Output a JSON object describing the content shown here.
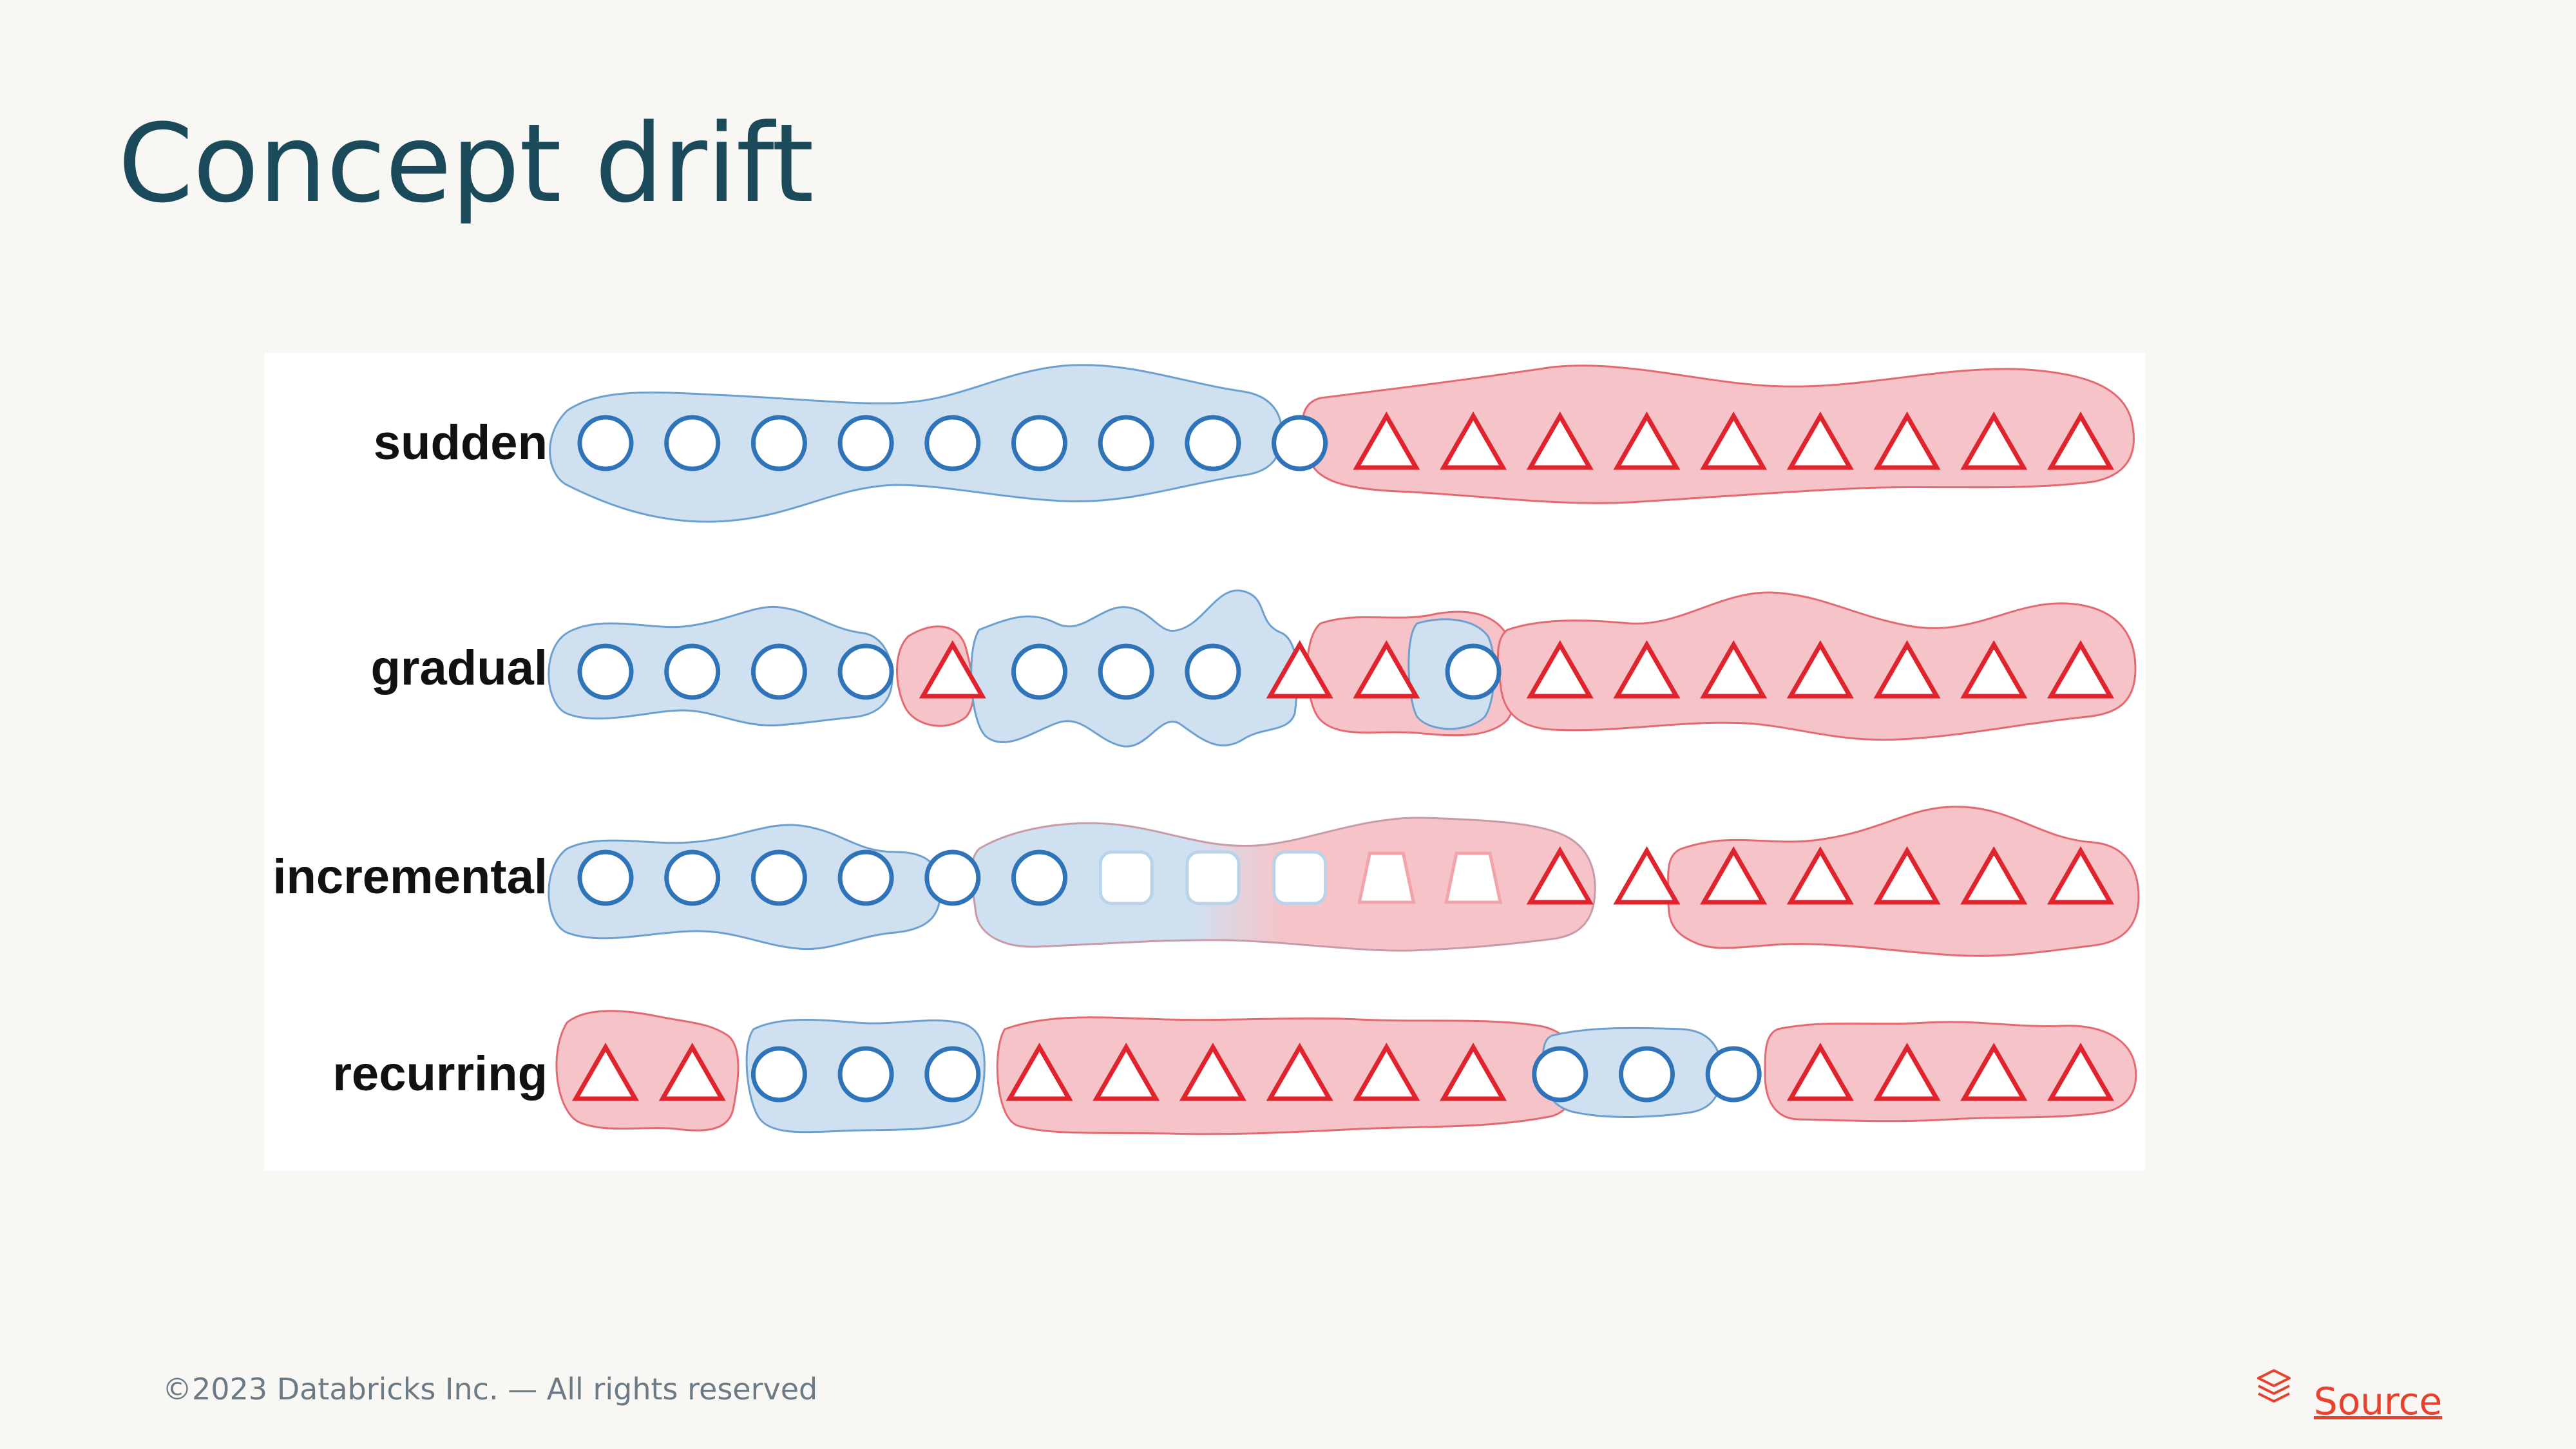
{
  "slide": {
    "title": "Concept drift",
    "footer": "©2023 Databricks Inc. — All rights reserved",
    "source_link": "Source",
    "source_icon": "layers-icon"
  },
  "diagram": {
    "colors": {
      "blue": "#2f73b8",
      "blue_fill": "#cfe1f1",
      "red": "#e0242d",
      "red_fill": "#f6c4c8"
    },
    "rows": [
      {
        "label": "sudden",
        "symbols": [
          "O",
          "O",
          "O",
          "O",
          "O",
          "O",
          "O",
          "O",
          "O",
          "T",
          "T",
          "T",
          "T",
          "T",
          "T",
          "T",
          "T",
          "T"
        ]
      },
      {
        "label": "gradual",
        "symbols": [
          "O",
          "O",
          "O",
          "O",
          "T",
          "O",
          "O",
          "O",
          "T",
          "T",
          "O",
          "T",
          "T",
          "T",
          "T",
          "T",
          "T",
          "T"
        ]
      },
      {
        "label": "incremental",
        "symbols": [
          "O",
          "O",
          "O",
          "O",
          "O",
          "O",
          "S",
          "S",
          "S",
          "P",
          "P",
          "T",
          "T",
          "T",
          "T",
          "T",
          "T",
          "T"
        ]
      },
      {
        "label": "recurring",
        "symbols": [
          "T",
          "T",
          "O",
          "O",
          "O",
          "T",
          "T",
          "T",
          "T",
          "T",
          "T",
          "O",
          "O",
          "O",
          "T",
          "T",
          "T",
          "T"
        ]
      }
    ]
  }
}
